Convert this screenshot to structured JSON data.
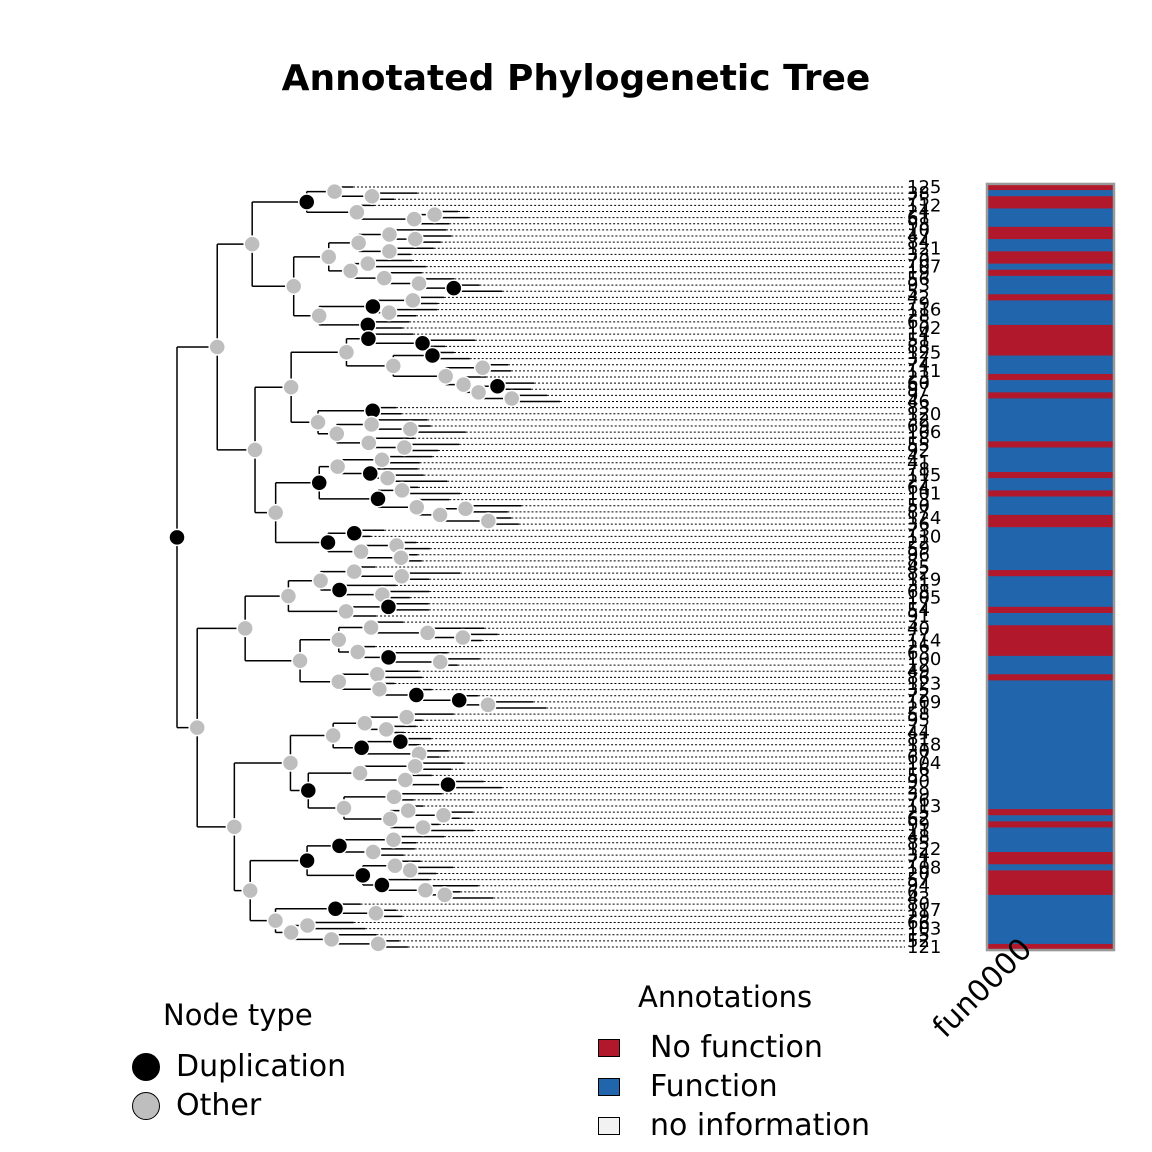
{
  "title": "Annotated Phylogenetic Tree",
  "colors": {
    "duplication": "#000000",
    "other": "#bebebe",
    "no_function": "#b2182b",
    "function": "#2166ac",
    "no_information": "#f2f2f2"
  },
  "node_legend": {
    "title": "Node type",
    "items": [
      {
        "label": "Duplication",
        "color_key": "duplication"
      },
      {
        "label": "Other",
        "color_key": "other"
      }
    ]
  },
  "annotation_legend": {
    "title": "Annotations",
    "items": [
      {
        "label": "No function",
        "color_key": "no_function"
      },
      {
        "label": "Function",
        "color_key": "function"
      },
      {
        "label": "no information",
        "color_key": "no_information"
      }
    ]
  },
  "chart_data": {
    "type": "heatmap",
    "tree_type": "phylogram",
    "title": "Annotated Phylogenetic Tree",
    "columns": [
      "fun0000"
    ],
    "n_tips": 125,
    "tip_labels_visible": [
      "125",
      "121"
    ],
    "annotation_states": [
      "No function",
      "Function",
      "no information"
    ],
    "annotation_pattern": "fun0000: 0 = No function, 1 = Function; 125 tips top to bottom",
    "annotations": "0,1,0,0,1,1,1,0,0,1,1,0,0,1,0,1,1,1,0,1,1,1,1,0,0,0,0,0,1,1,1,0,1,1,0,1,1,1,1,1,1,1,0,1,1,1,1,0,1,1,0,1,1,1,0,0,1,1,1,1,1,1,1,0,1,1,1,1,1,0,1,1,0,0,0,0,0,1,1,1,0,1,1,1,1,1,1,1,1,1,1,1,1,1,1,1,1,1,1,1,1,1,0,1,0,1,1,1,1,0,0,1,0,0,0,0,1,1,1,1,1,1,1,1,0"
  }
}
